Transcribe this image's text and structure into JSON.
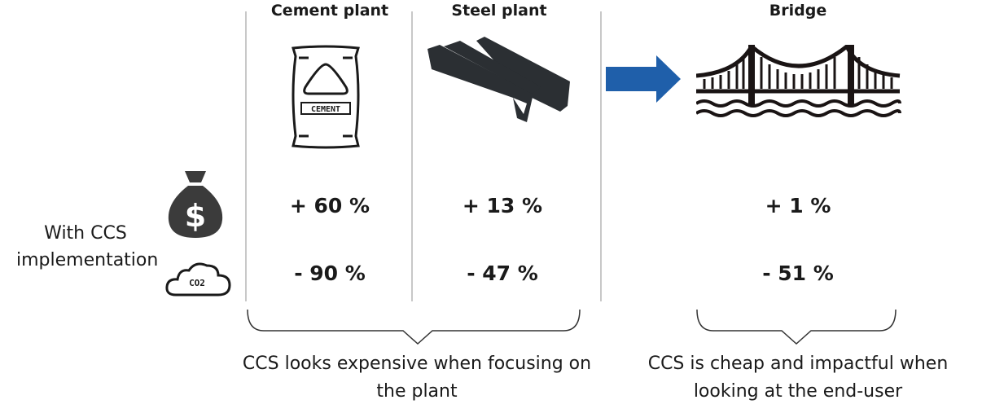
{
  "columns": [
    {
      "header": "Cement plant",
      "cost": "+ 60 %",
      "co2": "- 90 %",
      "icon": "cement-bag-icon",
      "icon_text": "CEMENT"
    },
    {
      "header": "Steel plant",
      "cost": "+ 13 %",
      "co2": "- 47 %",
      "icon": "steel-beams-icon"
    },
    {
      "header": "Bridge",
      "cost": "+ 1 %",
      "co2": "- 51 %",
      "icon": "bridge-icon"
    }
  ],
  "row_label": "With CCS implementation",
  "row_icons": {
    "cost": "money-bag-icon",
    "co2": "co2-cloud-icon",
    "co2_text": "CO2"
  },
  "arrow_color": "#1f5faa",
  "footnotes": {
    "left": "CCS looks expensive when focusing on the plant",
    "right": "CCS is cheap and impactful when looking at the end-user"
  }
}
